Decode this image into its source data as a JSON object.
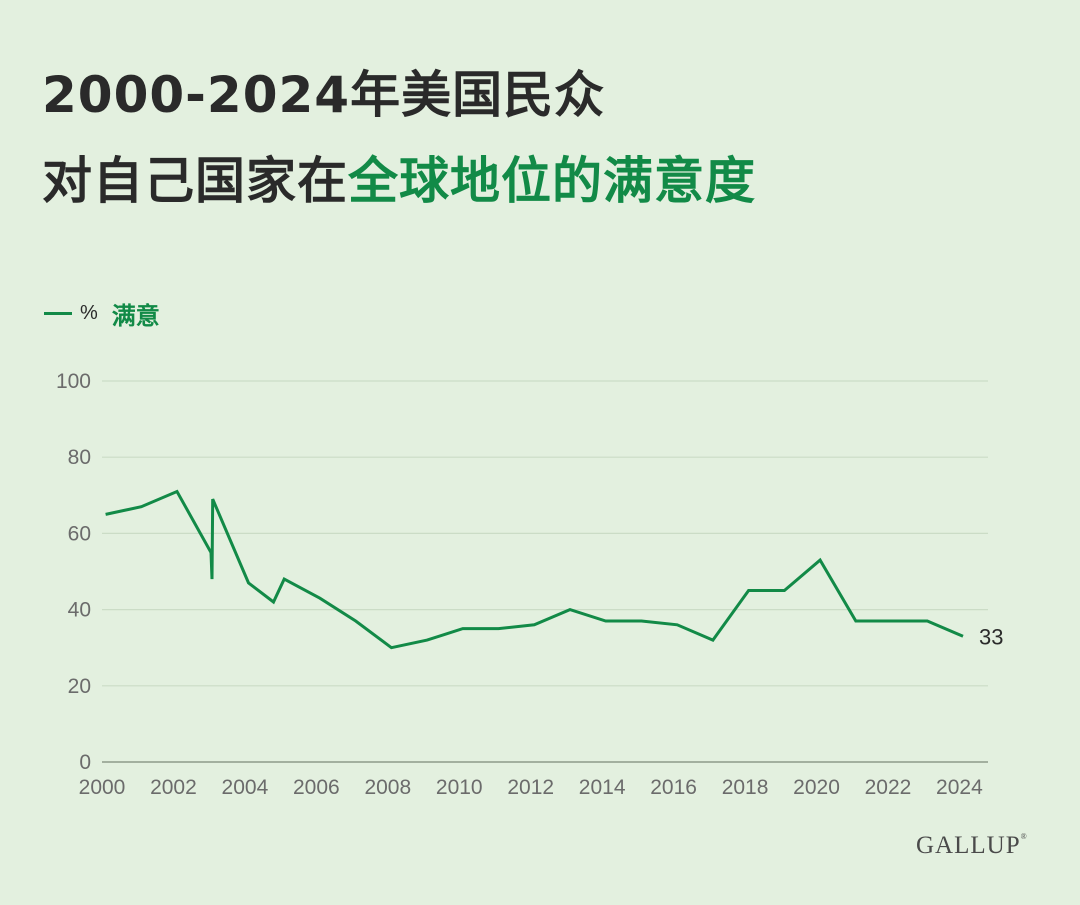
{
  "title": {
    "line1": "2000-2024年美国民众",
    "line2_prefix": "对自己国家在",
    "line2_highlight": "全球地位的满意度"
  },
  "legend": {
    "unit": "%",
    "label": "满意",
    "color": "#128a47"
  },
  "brand": "GALLUP",
  "colors": {
    "background": "#e3f0df",
    "line": "#128a47",
    "grid": "#cbdcc6",
    "title": "#2a2a2a"
  },
  "chart_data": {
    "type": "line",
    "title": "2000-2024年美国民众对自己国家在全球地位的满意度",
    "xlabel": "",
    "ylabel": "",
    "xlim": [
      2000,
      2024.8
    ],
    "ylim": [
      0,
      100
    ],
    "yticks": [
      0,
      20,
      40,
      60,
      80,
      100
    ],
    "xticks": [
      2000,
      2002,
      2004,
      2006,
      2008,
      2010,
      2012,
      2014,
      2016,
      2018,
      2020,
      2022,
      2024
    ],
    "grid": true,
    "legend_position": "top-left",
    "series": [
      {
        "name": "满意",
        "x": [
          2000.1,
          2001.1,
          2002.1,
          2003.05,
          2003.08,
          2003.1,
          2004.1,
          2004.8,
          2005.1,
          2006.1,
          2007.1,
          2008.1,
          2009.1,
          2010.1,
          2011.1,
          2012.1,
          2013.1,
          2014.1,
          2015.1,
          2016.1,
          2017.1,
          2018.1,
          2019.1,
          2020.1,
          2021.1,
          2022.1,
          2023.1,
          2024.1
        ],
        "y": [
          65,
          67,
          71,
          55,
          48,
          69,
          47,
          42,
          48,
          43,
          37,
          30,
          32,
          35,
          35,
          36,
          40,
          37,
          37,
          36,
          32,
          45,
          45,
          53,
          37,
          37,
          37,
          33
        ]
      }
    ],
    "end_label": "33"
  }
}
